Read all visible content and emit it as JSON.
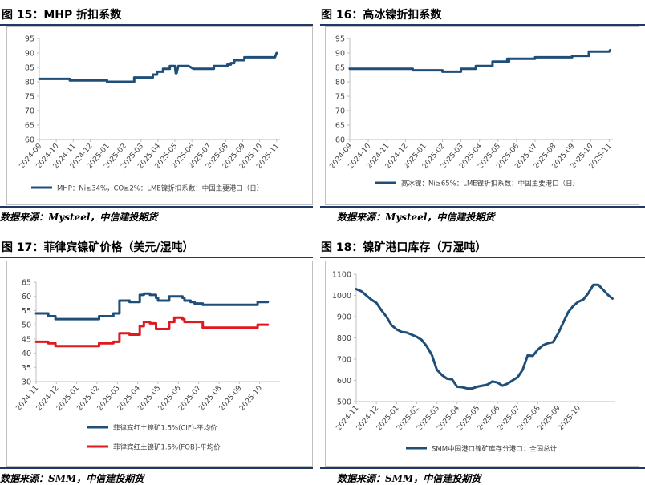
{
  "figures": [
    {
      "title": "图 15：MHP 折扣系数",
      "source": "数据来源：Mysteel，中信建投期货"
    },
    {
      "title": "图 16：高冰镍折扣系数",
      "source": "数据来源：Mysteel，中信建投期货"
    },
    {
      "title": "图 17：菲律宾镍矿价格（美元/湿吨）",
      "source": "数据来源：SMM，中信建投期货"
    },
    {
      "title": "图 18：镍矿港口库存（万湿吨）",
      "source": "数据来源：SMM，中信建投期货"
    }
  ],
  "chart_data": [
    {
      "type": "line",
      "ylim": [
        60,
        95
      ],
      "yticks": [
        "60",
        "65",
        "70",
        "75",
        "80",
        "85",
        "90",
        "95"
      ],
      "xlim": [
        0,
        14.2
      ],
      "xticks": [
        "2024-09",
        "2024-10",
        "2024-11",
        "2024-12",
        "2025-01",
        "2025-02",
        "2025-03",
        "2025-04",
        "2025-05",
        "2025-06",
        "2025-07",
        "2025-08",
        "2025-09",
        "2025-10",
        "2025-11"
      ],
      "grid": false,
      "legend_position": "bottom",
      "series": [
        {
          "name": "MHP：Ni≥34%，CO≥2%：LME镍折扣系数：中国主要港口（日）",
          "color": "#1f4e79",
          "x": [
            0,
            1.8,
            1.8,
            4,
            4,
            5.6,
            5.6,
            6.7,
            6.7,
            6.95,
            6.95,
            7.3,
            7.3,
            7.7,
            7.7,
            8.0,
            8.05,
            8.1,
            8.2,
            8.2,
            8.8,
            8.8,
            9.1,
            9.1,
            10.3,
            10.3,
            11.1,
            11.1,
            11.3,
            11.3,
            11.5,
            11.5,
            12.1,
            12.1,
            13.9,
            14.0
          ],
          "y": [
            81,
            81,
            80.5,
            80.5,
            80,
            80,
            81.5,
            81.5,
            82.5,
            82.5,
            83.5,
            83.5,
            84.5,
            84.5,
            85.5,
            85.5,
            83,
            83,
            85.5,
            85.5,
            85.5,
            85.5,
            84.5,
            84.5,
            84.5,
            85.5,
            85.5,
            86,
            86,
            86.5,
            86.5,
            87.5,
            87.5,
            88.5,
            88.5,
            90
          ]
        }
      ]
    },
    {
      "type": "line",
      "ylim": [
        60,
        95
      ],
      "yticks": [
        "60",
        "65",
        "70",
        "75",
        "80",
        "85",
        "90",
        "95"
      ],
      "xlim": [
        0,
        14.2
      ],
      "xticks": [
        "2024-09",
        "2024-10",
        "2024-11",
        "2024-12",
        "2025-01",
        "2025-02",
        "2025-03",
        "2025-04",
        "2025-05",
        "2025-06",
        "2025-07",
        "2025-08",
        "2025-09",
        "2025-10",
        "2025-11"
      ],
      "grid": false,
      "legend_position": "bottom",
      "series": [
        {
          "name": "高冰镍：Ni≥65%：LME镍折扣系数：中国主要港口（日）",
          "color": "#1f4e79",
          "x": [
            0,
            3.4,
            3.4,
            5.0,
            5.0,
            6.0,
            6.0,
            6.8,
            6.8,
            7.7,
            7.7,
            8.5,
            8.5,
            8.55,
            8.6,
            8.6,
            10.0,
            10.0,
            12.0,
            12.0,
            12.9,
            12.9,
            14.0,
            14.05
          ],
          "y": [
            84.5,
            84.5,
            84,
            84,
            83.5,
            83.5,
            84.5,
            84.5,
            85.5,
            85.5,
            87,
            87,
            88,
            88,
            87,
            88,
            88,
            88.5,
            88.5,
            89,
            89,
            90.5,
            90.5,
            91
          ]
        }
      ]
    },
    {
      "type": "line",
      "ylim": [
        30,
        65
      ],
      "yticks": [
        "30",
        "35",
        "40",
        "45",
        "50",
        "55",
        "60",
        "65"
      ],
      "xlim": [
        0,
        12
      ],
      "xticks": [
        "2024-11",
        "2024-12",
        "2025-01",
        "2025-02",
        "2025-03",
        "2025-04",
        "2025-05",
        "2025-06",
        "2025-07",
        "2025-08",
        "2025-09",
        "2025-10"
      ],
      "grid": false,
      "legend_position": "bottom",
      "series": [
        {
          "name": "菲律宾红土镍矿1.5%(CIF)-平均价",
          "color": "#1f4e79",
          "x": [
            0,
            0.6,
            0.6,
            0.95,
            0.95,
            3.1,
            3.1,
            3.8,
            3.8,
            4.1,
            4.1,
            4.6,
            4.6,
            5.1,
            5.1,
            5.3,
            5.3,
            5.6,
            5.6,
            5.9,
            5.9,
            6.0,
            6.0,
            6.55,
            6.55,
            7.2,
            7.2,
            7.3,
            7.3,
            7.6,
            7.6,
            7.8,
            7.8,
            8.2,
            8.2,
            10.9,
            10.9,
            11.4
          ],
          "y": [
            54,
            54,
            53,
            53,
            52,
            52,
            53,
            53,
            54,
            54,
            58.5,
            58.5,
            58,
            58,
            60.5,
            60.5,
            61,
            61,
            60.5,
            60.5,
            59.5,
            59.5,
            58.5,
            58.5,
            60,
            60,
            59.5,
            59.5,
            58.5,
            58.5,
            58,
            58,
            57.5,
            57.5,
            57,
            57,
            58,
            58
          ]
        },
        {
          "name": "菲律宾红土镍矿1.5%(FOB)-平均价",
          "color": "#e0191f",
          "x": [
            0,
            0.6,
            0.6,
            0.95,
            0.95,
            3.1,
            3.1,
            3.8,
            3.8,
            4.1,
            4.1,
            4.6,
            4.6,
            5.1,
            5.1,
            5.3,
            5.3,
            5.6,
            5.6,
            5.9,
            5.9,
            6.55,
            6.55,
            6.8,
            6.8,
            7.2,
            7.2,
            7.3,
            7.3,
            8.2,
            8.2,
            10.9,
            10.9,
            11.4
          ],
          "y": [
            44,
            44,
            43.5,
            43.5,
            42.5,
            42.5,
            43.5,
            43.5,
            44,
            44,
            47,
            47,
            46.5,
            46.5,
            49.5,
            49.5,
            51,
            51,
            50.5,
            50.5,
            48.5,
            48.5,
            51,
            51,
            52.5,
            52.5,
            52,
            52,
            51,
            51,
            49,
            49,
            50,
            50
          ]
        }
      ]
    },
    {
      "type": "line",
      "ylim": [
        500,
        1100
      ],
      "yticks": [
        "500",
        "600",
        "700",
        "800",
        "900",
        "1000",
        "1100"
      ],
      "xlim": [
        0,
        12.8
      ],
      "xticks": [
        "2024-11",
        "2024-12",
        "2025-01",
        "2025-02",
        "2025-03",
        "2025-04",
        "2025-05",
        "2025-06",
        "2025-07",
        "2025-08",
        "2025-09",
        "2025-10"
      ],
      "grid": false,
      "legend_position": "bottom",
      "series": [
        {
          "name": "SMM中国港口镍矿库存分港口：全国总计",
          "color": "#1f4e79",
          "x": [
            0,
            0.25,
            0.5,
            0.75,
            1.0,
            1.25,
            1.5,
            1.75,
            2.0,
            2.25,
            2.5,
            2.75,
            3.0,
            3.25,
            3.5,
            3.75,
            4.0,
            4.25,
            4.5,
            4.75,
            5.0,
            5.25,
            5.5,
            5.75,
            6.0,
            6.25,
            6.5,
            6.75,
            7.0,
            7.25,
            7.5,
            7.75,
            8.0,
            8.25,
            8.5,
            8.75,
            9.0,
            9.25,
            9.5,
            9.75,
            10.0,
            10.25,
            10.5,
            10.75,
            11.0,
            11.25,
            11.5,
            11.75,
            12.0,
            12.25,
            12.5,
            12.7
          ],
          "y": [
            1030,
            1020,
            1000,
            980,
            965,
            930,
            900,
            860,
            840,
            828,
            825,
            815,
            805,
            790,
            760,
            720,
            650,
            625,
            608,
            605,
            570,
            568,
            562,
            562,
            570,
            575,
            580,
            595,
            590,
            575,
            585,
            600,
            615,
            650,
            718,
            715,
            745,
            765,
            775,
            780,
            820,
            870,
            920,
            950,
            970,
            980,
            1010,
            1050,
            1050,
            1025,
            1000,
            985
          ]
        }
      ]
    }
  ]
}
